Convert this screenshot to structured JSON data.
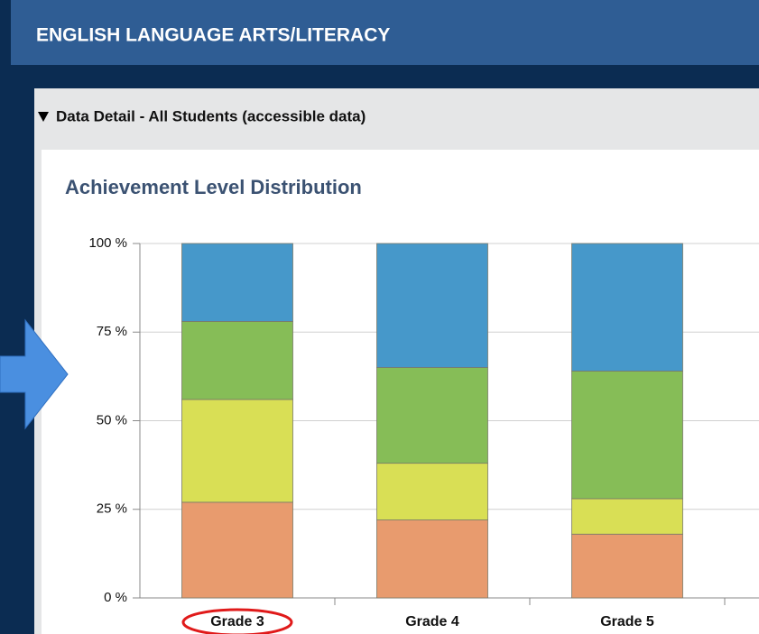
{
  "header": "ENGLISH LANGUAGE ARTS/LITERACY",
  "section": "Data Detail - All Students (accessible data)",
  "chart_data": {
    "type": "stacked_bar",
    "title": "Achievement Level Distribution",
    "categories": [
      "Grade 3",
      "Grade 4",
      "Grade 5"
    ],
    "series": [
      {
        "color": "#e89b6e",
        "values": [
          27,
          22,
          18
        ]
      },
      {
        "color": "#d9df55",
        "values": [
          29,
          16,
          10
        ]
      },
      {
        "color": "#86bd57",
        "values": [
          22,
          27,
          36
        ]
      },
      {
        "color": "#4698ca",
        "values": [
          22,
          35,
          36
        ]
      }
    ],
    "ylim": [
      0,
      100
    ],
    "yticks": [
      {
        "value": 0,
        "label": "0 %"
      },
      {
        "value": 25,
        "label": "25 %"
      },
      {
        "value": 50,
        "label": "50 %"
      },
      {
        "value": 75,
        "label": "75 %"
      },
      {
        "value": 100,
        "label": "100 %"
      }
    ],
    "grid": true,
    "highlight": "Grade 3"
  }
}
